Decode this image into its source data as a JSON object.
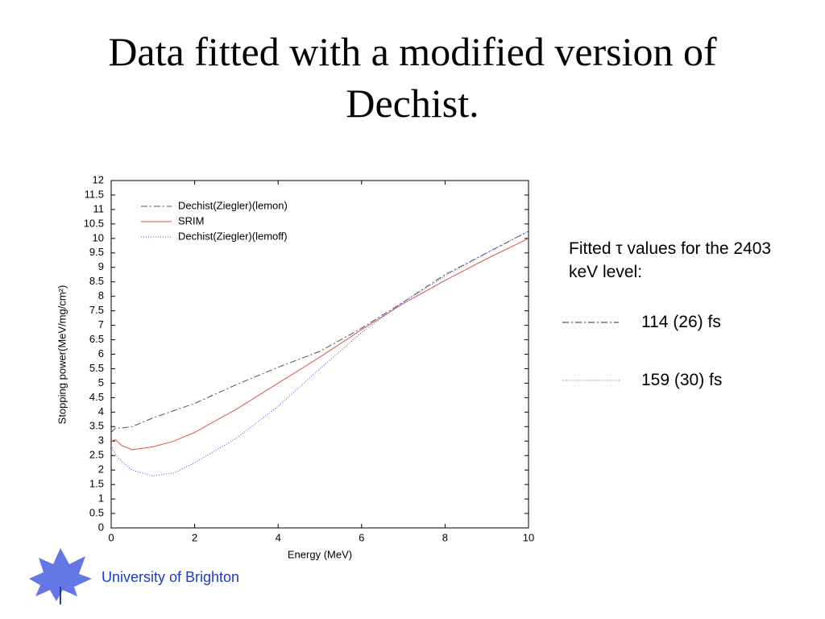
{
  "chart_data": {
    "type": "line",
    "title": "Data fitted with a modified version of Dechist.",
    "xlabel": "Energy (MeV)",
    "ylabel": "Stopping power(MeV/mg/cm²)",
    "x": [
      0,
      0.1,
      0.25,
      0.5,
      1,
      1.5,
      2,
      3,
      4,
      5,
      6,
      7,
      8,
      9,
      10
    ],
    "series": [
      {
        "name": "Dechist(Ziegler)(lemon)",
        "color": "#555555",
        "style": "dashdot",
        "values": [
          3.3,
          3.45,
          3.45,
          3.5,
          3.8,
          4.05,
          4.3,
          4.95,
          5.55,
          6.1,
          6.9,
          7.8,
          8.75,
          9.5,
          10.25
        ]
      },
      {
        "name": "SRIM",
        "color": "#e05050",
        "style": "solid",
        "values": [
          3.0,
          3.05,
          2.85,
          2.7,
          2.8,
          3.0,
          3.3,
          4.1,
          5.0,
          5.9,
          6.85,
          7.75,
          8.55,
          9.3,
          10.0
        ]
      },
      {
        "name": "Dechist(Ziegler)(lemoff)",
        "color": "#3355ee",
        "style": "dotted",
        "values": [
          2.85,
          2.55,
          2.3,
          2.0,
          1.8,
          1.9,
          2.25,
          3.1,
          4.2,
          5.5,
          6.75,
          7.8,
          8.7,
          9.5,
          10.25
        ]
      }
    ],
    "xlim": [
      0,
      10
    ],
    "xticks": [
      0,
      2,
      4,
      6,
      8,
      10
    ],
    "ylim": [
      0,
      12
    ],
    "yticks": [
      0,
      0.5,
      1,
      1.5,
      2,
      2.5,
      3,
      3.5,
      4,
      4.5,
      5,
      5.5,
      6,
      6.5,
      7,
      7.5,
      8,
      8.5,
      9,
      9.5,
      10,
      10.5,
      11,
      11.5,
      12
    ],
    "grid": false,
    "legend": "upper-left"
  },
  "side_note": {
    "heading": "Fitted τ values for the 2403 keV level:",
    "entries": [
      "114 (26) fs",
      "159 (30) fs"
    ]
  },
  "footer": "University of Brighton"
}
